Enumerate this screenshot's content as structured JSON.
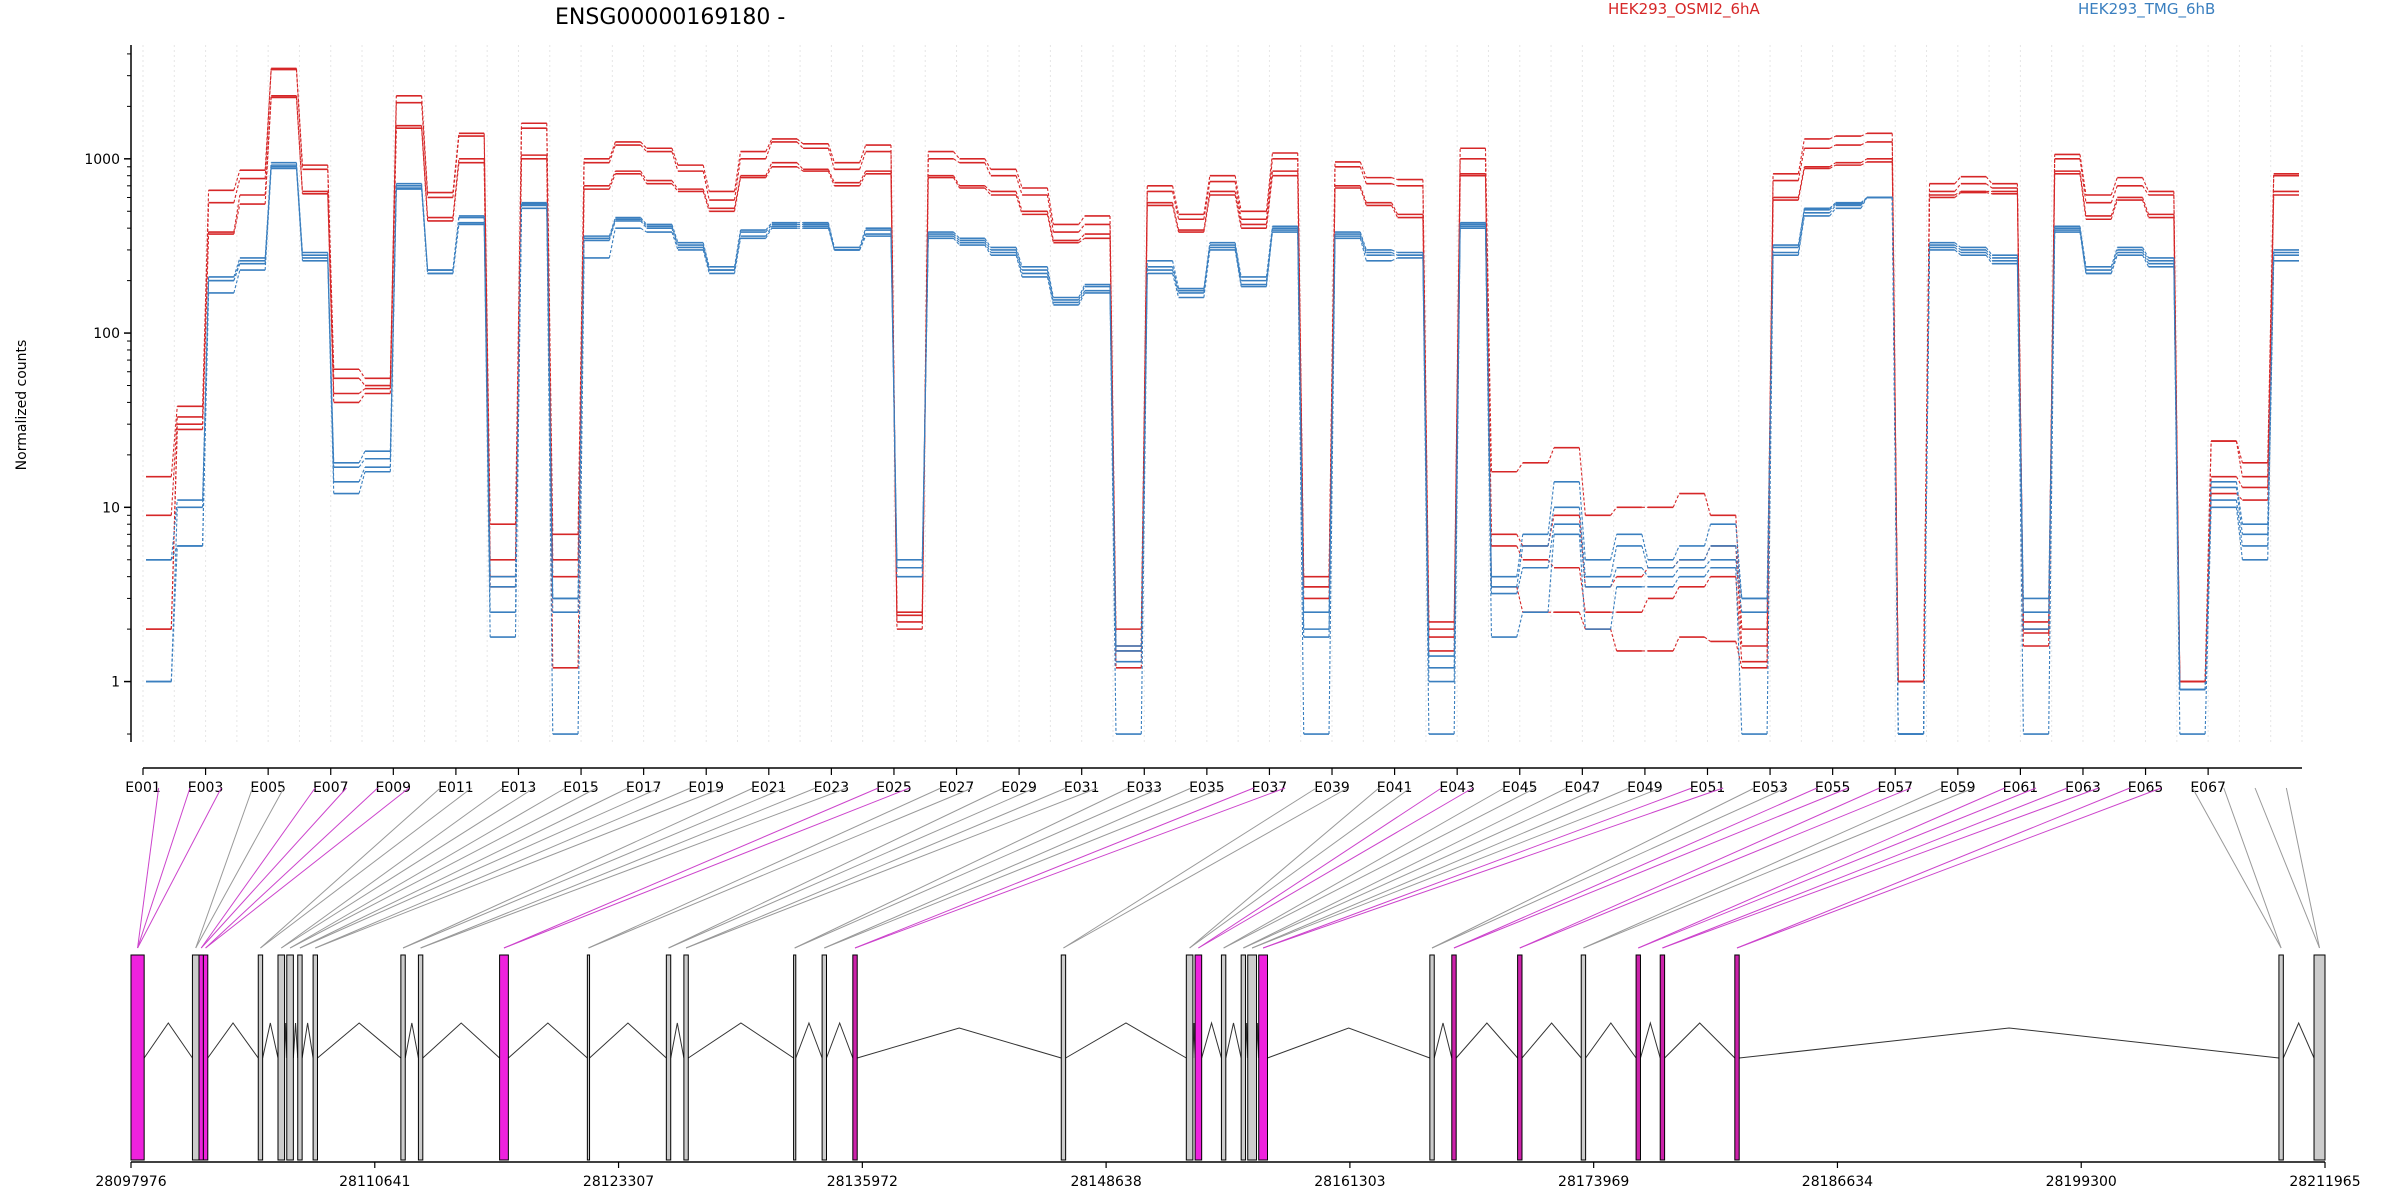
{
  "chart_data": {
    "type": "line",
    "title": "ENSG00000169180 -",
    "ylabel": "Normalized counts",
    "yscale": "log",
    "ylim": [
      0.45,
      4500
    ],
    "y_ticks": [
      1,
      10,
      100,
      1000
    ],
    "y_tick_labels": [
      "1",
      "10",
      "100",
      "1000"
    ],
    "exon_labels": [
      "E001",
      "E003",
      "E005",
      "E007",
      "E009",
      "E011",
      "E013",
      "E015",
      "E017",
      "E019",
      "E021",
      "E023",
      "E025",
      "E027",
      "E029",
      "E031",
      "E033",
      "E035",
      "E037",
      "E039",
      "E041",
      "E043",
      "E045",
      "E047",
      "E049",
      "E051",
      "E053",
      "E055",
      "E057",
      "E059",
      "E061",
      "E063",
      "E065",
      "E067"
    ],
    "legend": [
      {
        "name": "HEK293_OSMI2_6hA",
        "color": "#d62728"
      },
      {
        "name": "HEK293_TMG_6hB",
        "color": "#3a7fbf"
      }
    ],
    "genomic_ticks": [
      "28097976",
      "28110641",
      "28123307",
      "28135972",
      "28148638",
      "28161303",
      "28173969",
      "28186634",
      "28199300",
      "28211965"
    ],
    "series": [
      {
        "group": "HEK293_OSMI2_6hA",
        "color": "#d62728",
        "values": [
          15,
          38,
          660,
          860,
          3300,
          920,
          62,
          55,
          2300,
          640,
          1400,
          8,
          1600,
          7,
          1000,
          1250,
          1150,
          920,
          650,
          1100,
          1300,
          1220,
          950,
          1200,
          2.5,
          1100,
          1000,
          870,
          680,
          420,
          470,
          2,
          700,
          480,
          800,
          500,
          1080,
          4,
          960,
          780,
          760,
          2.2,
          1150,
          16,
          18,
          22,
          9,
          10,
          10,
          12,
          9,
          2,
          820,
          1300,
          1350,
          1400,
          1,
          720,
          790,
          720,
          2.2,
          1060,
          620,
          780,
          650,
          1,
          24,
          18,
          820
        ]
      },
      {
        "group": "HEK293_OSMI2_6hA",
        "color": "#d62728",
        "values": [
          9,
          33,
          560,
          770,
          3250,
          870,
          55,
          50,
          2100,
          600,
          1350,
          5,
          1500,
          5,
          950,
          1200,
          1100,
          850,
          580,
          1000,
          1250,
          1150,
          870,
          1100,
          2.2,
          1000,
          950,
          800,
          620,
          380,
          420,
          1.6,
          650,
          450,
          740,
          450,
          1000,
          3.5,
          900,
          720,
          700,
          2,
          1000,
          7,
          6,
          9,
          3.5,
          4,
          4.5,
          5,
          6,
          1.6,
          750,
          1150,
          1200,
          1250,
          1,
          650,
          720,
          680,
          1.9,
          1000,
          560,
          700,
          620,
          1,
          24,
          15,
          800
        ]
      },
      {
        "group": "HEK293_OSMI2_6hA",
        "color": "#d62728",
        "values": [
          2,
          30,
          380,
          620,
          2300,
          650,
          45,
          48,
          1550,
          460,
          1000,
          4,
          1050,
          4,
          700,
          850,
          750,
          670,
          520,
          800,
          950,
          870,
          730,
          850,
          2.4,
          800,
          700,
          650,
          500,
          340,
          370,
          1.5,
          560,
          390,
          650,
          420,
          850,
          3.5,
          700,
          560,
          480,
          1.8,
          820,
          6,
          5,
          4.5,
          2.5,
          2.5,
          3,
          3.5,
          4,
          1.3,
          600,
          900,
          950,
          1000,
          1,
          620,
          650,
          650,
          2,
          850,
          470,
          600,
          480,
          1,
          15,
          13,
          650
        ]
      },
      {
        "group": "HEK293_OSMI2_6hA",
        "color": "#d62728",
        "values": [
          2,
          28,
          370,
          550,
          2250,
          630,
          40,
          45,
          1500,
          440,
          950,
          3.5,
          1000,
          1.2,
          670,
          820,
          720,
          650,
          500,
          780,
          900,
          850,
          700,
          820,
          2,
          780,
          680,
          620,
          480,
          330,
          350,
          1.2,
          540,
          380,
          620,
          400,
          800,
          3,
          680,
          540,
          460,
          1.5,
          800,
          3.5,
          2.5,
          2.5,
          2,
          1.5,
          1.5,
          1.8,
          1.7,
          1.2,
          580,
          880,
          920,
          960,
          1,
          600,
          640,
          630,
          1.6,
          820,
          450,
          580,
          460,
          1,
          12,
          11,
          620
        ]
      },
      {
        "group": "HEK293_TMG_6hB",
        "color": "#3a7fbf",
        "values": [
          5,
          11,
          210,
          270,
          950,
          290,
          18,
          21,
          720,
          230,
          470,
          4,
          560,
          3,
          360,
          460,
          420,
          330,
          240,
          390,
          430,
          430,
          310,
          400,
          5,
          380,
          350,
          310,
          240,
          160,
          190,
          1.6,
          260,
          180,
          330,
          210,
          410,
          2.5,
          380,
          300,
          290,
          1.4,
          430,
          4,
          7,
          14,
          5,
          7,
          5,
          6,
          8,
          3,
          320,
          520,
          560,
          600,
          0.5,
          330,
          310,
          280,
          3,
          410,
          240,
          310,
          270,
          0.9,
          14,
          8,
          300
        ]
      },
      {
        "group": "HEK293_TMG_6hB",
        "color": "#3a7fbf",
        "values": [
          1,
          10,
          200,
          260,
          920,
          280,
          17,
          19,
          700,
          230,
          460,
          3.5,
          550,
          3,
          350,
          450,
          410,
          320,
          230,
          380,
          420,
          420,
          300,
          390,
          4.5,
          370,
          340,
          300,
          230,
          155,
          185,
          1.5,
          240,
          175,
          320,
          200,
          400,
          2,
          370,
          290,
          280,
          1.2,
          420,
          3.5,
          6,
          10,
          4,
          6,
          4.5,
          5,
          6,
          3,
          310,
          510,
          550,
          600,
          0.5,
          320,
          300,
          270,
          2.5,
          400,
          230,
          300,
          260,
          0.9,
          13,
          7,
          290
        ]
      },
      {
        "group": "HEK293_TMG_6hB",
        "color": "#3a7fbf",
        "values": [
          5,
          6,
          200,
          250,
          900,
          270,
          14,
          17,
          680,
          220,
          430,
          2.5,
          540,
          2.5,
          340,
          440,
          400,
          310,
          230,
          360,
          410,
          410,
          300,
          370,
          4,
          360,
          330,
          290,
          220,
          150,
          175,
          1.3,
          230,
          170,
          310,
          190,
          390,
          1.8,
          360,
          280,
          280,
          1,
          410,
          3.2,
          4.5,
          8,
          3.5,
          4.5,
          4,
          4.5,
          5,
          2.5,
          290,
          490,
          540,
          600,
          0.5,
          310,
          290,
          260,
          2,
          390,
          220,
          290,
          250,
          0.9,
          11,
          6,
          280
        ]
      },
      {
        "group": "HEK293_TMG_6hB",
        "color": "#3a7fbf",
        "values": [
          1,
          6,
          170,
          230,
          880,
          260,
          12,
          16,
          670,
          220,
          420,
          1.8,
          520,
          0.5,
          270,
          400,
          380,
          300,
          220,
          350,
          400,
          400,
          300,
          360,
          4.5,
          350,
          320,
          280,
          210,
          145,
          170,
          0.5,
          220,
          160,
          300,
          185,
          380,
          0.5,
          350,
          260,
          270,
          0.5,
          400,
          1.8,
          2.5,
          7,
          2,
          3.5,
          3.5,
          4,
          4.5,
          0.5,
          280,
          470,
          520,
          600,
          0.5,
          300,
          280,
          250,
          0.5,
          380,
          220,
          280,
          240,
          0.5,
          10,
          5,
          260
        ]
      }
    ]
  }
}
